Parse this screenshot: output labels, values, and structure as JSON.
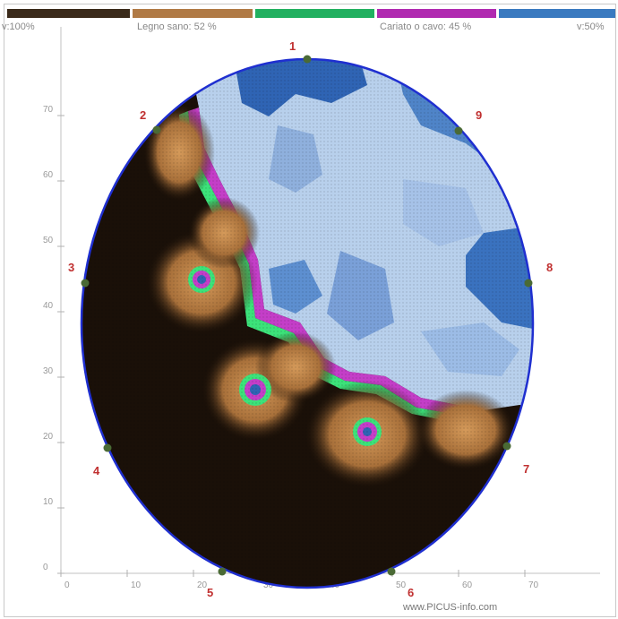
{
  "legend": {
    "left_label": "v:100%",
    "sound_label": "Legno sano: 52 %",
    "decay_label": "Cariato o cavo: 45 %",
    "right_label": "v:50%",
    "segments": [
      {
        "name": "dark-brown",
        "color": "#3a2a1a"
      },
      {
        "name": "light-brown",
        "color": "#b07a45"
      },
      {
        "name": "green",
        "color": "#22b060"
      },
      {
        "name": "magenta",
        "color": "#b02ab0"
      },
      {
        "name": "blue",
        "color": "#3a7ac0"
      }
    ]
  },
  "sensors": [
    "1",
    "2",
    "3",
    "4",
    "5",
    "6",
    "7",
    "8",
    "9"
  ],
  "axes": {
    "x_ticks": [
      "0",
      "10",
      "20",
      "30",
      "40",
      "50",
      "60",
      "70"
    ],
    "y_ticks": [
      "0",
      "10",
      "20",
      "30",
      "40",
      "50",
      "60",
      "70"
    ]
  },
  "colors": {
    "outline": "#1f2fd0",
    "sensor_dot": "#4a6a35",
    "sensor_label": "#c03030",
    "dark_wood": "#1a1008",
    "sound_wood": "#c8874a",
    "healthy_blue": "#b8d0ec",
    "mid_blue": "#6a9ad6",
    "deep_blue": "#2f64b4",
    "green_ring": "#3ce27a",
    "magenta_ring": "#c43ec8"
  },
  "footer": {
    "credit": "www.PICUS-info.com"
  }
}
